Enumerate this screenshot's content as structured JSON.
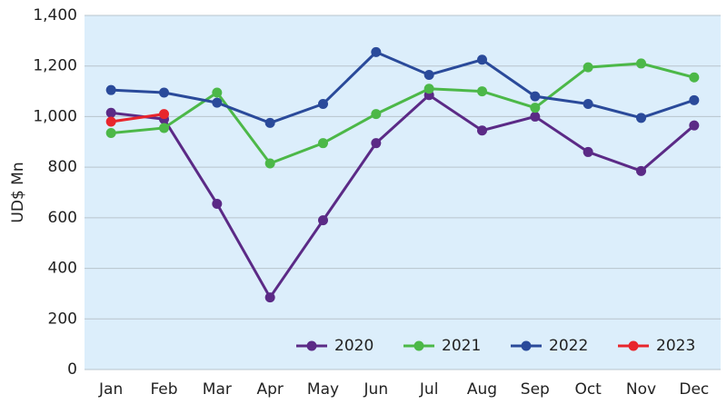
{
  "chart_data": {
    "type": "line",
    "y_label": "UD$ Mn",
    "categories": [
      "Jan",
      "Feb",
      "Mar",
      "Apr",
      "May",
      "Jun",
      "Jul",
      "Aug",
      "Sep",
      "Oct",
      "Nov",
      "Dec"
    ],
    "series": [
      {
        "name": "2020",
        "color": "#5b2a86",
        "values": [
          1015,
          990,
          655,
          285,
          590,
          895,
          1085,
          945,
          1000,
          860,
          785,
          965
        ]
      },
      {
        "name": "2021",
        "color": "#4cb848",
        "values": [
          935,
          955,
          1095,
          815,
          895,
          1010,
          1110,
          1100,
          1035,
          1195,
          1210,
          1155
        ]
      },
      {
        "name": "2022",
        "color": "#2a4a9a",
        "values": [
          1105,
          1095,
          1055,
          975,
          1050,
          1255,
          1165,
          1225,
          1080,
          1050,
          995,
          1065
        ]
      },
      {
        "name": "2023",
        "color": "#e8262c",
        "values": [
          980,
          1010,
          null,
          null,
          null,
          null,
          null,
          null,
          null,
          null,
          null,
          null
        ]
      }
    ],
    "ylim": [
      0,
      1400
    ],
    "yticks": [
      0,
      200,
      400,
      600,
      800,
      {
        "value": 1000,
        "label": "1,000"
      },
      {
        "value": 1200,
        "label": "1,200"
      },
      {
        "value": 1400,
        "label": "1,400"
      }
    ],
    "grid": true,
    "legend": "bottom-right"
  }
}
